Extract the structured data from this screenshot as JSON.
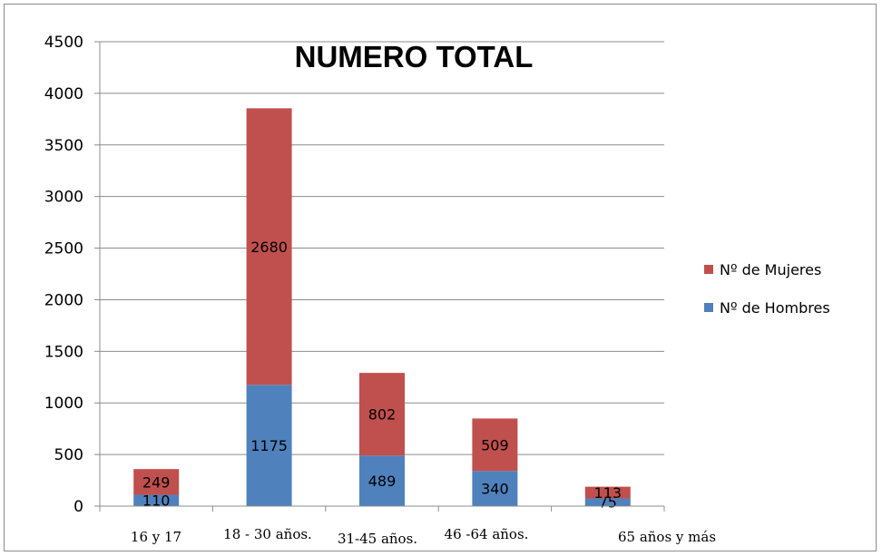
{
  "chart_data": {
    "type": "bar",
    "stacked": true,
    "title": "NUMERO TOTAL",
    "categories": [
      "16 y 17",
      "18 - 30 años.",
      "31-45  años.",
      "46 -64 años.",
      "65 años y más"
    ],
    "series": [
      {
        "name": "Nº de Hombres",
        "values": [
          110,
          1175,
          489,
          340,
          75
        ],
        "color": "#4f81bd"
      },
      {
        "name": "Nº de Mujeres",
        "values": [
          249,
          2680,
          802,
          509,
          113
        ],
        "color": "#c0504d"
      }
    ],
    "ylim": [
      0,
      4500
    ],
    "yticks": [
      0,
      500,
      1000,
      1500,
      2000,
      2500,
      3000,
      3500,
      4000,
      4500
    ],
    "grid": true,
    "legend_position": "right",
    "legend_order": [
      "Nº de Mujeres",
      "Nº de Hombres"
    ]
  }
}
